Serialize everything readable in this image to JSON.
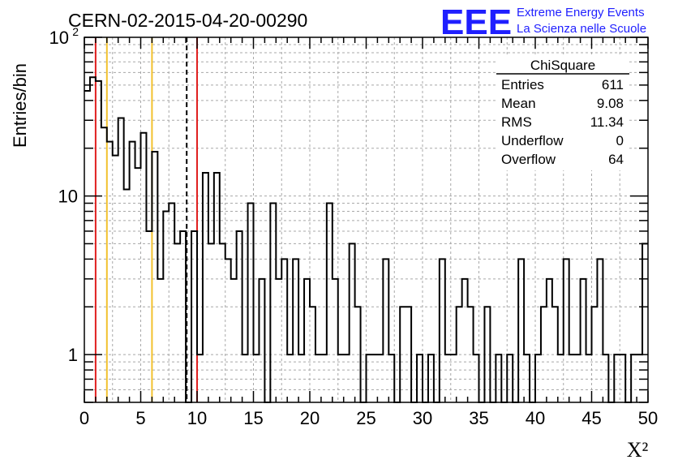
{
  "chart_data": {
    "type": "histogram",
    "title": "CERN-02-2015-04-20-00290",
    "xlabel": "X²",
    "ylabel": "Entries/bin",
    "xlim": [
      0,
      50
    ],
    "ylim": [
      0.5,
      100
    ],
    "yscale": "log",
    "grid": true,
    "bin_width": 0.5,
    "x_ticks": [
      "0",
      "5",
      "10",
      "15",
      "20",
      "25",
      "30",
      "35",
      "40",
      "45",
      "50"
    ],
    "y_ticks": [
      {
        "value": 1,
        "label": "1"
      },
      {
        "value": 10,
        "label": "10"
      },
      {
        "value": 100,
        "label": "10",
        "exponent": "2"
      }
    ],
    "counts": [
      46,
      56,
      53,
      27,
      22,
      18,
      31,
      11,
      22,
      15,
      25,
      6,
      19,
      3,
      8,
      9,
      5,
      6,
      0,
      6,
      1,
      14,
      5,
      14,
      5,
      4,
      3,
      6,
      1,
      9,
      1,
      3,
      0,
      9,
      3,
      4,
      1,
      4,
      1,
      3,
      2,
      1,
      1,
      9,
      3,
      1,
      1,
      5,
      2,
      0,
      1,
      1,
      1,
      4,
      1,
      0,
      2,
      2,
      0,
      1,
      0,
      1,
      0,
      4,
      1,
      1,
      2,
      3,
      2,
      1,
      0,
      2,
      0,
      1,
      0,
      1,
      0,
      4,
      1,
      0,
      1,
      2,
      3,
      2,
      1,
      4,
      1,
      1,
      3,
      1,
      2,
      4,
      1,
      0,
      1,
      1,
      0,
      1,
      1,
      5
    ],
    "vertical_lines": [
      {
        "x": 1,
        "color": "#e02020",
        "style": "solid"
      },
      {
        "x": 2,
        "color": "#f2c12e",
        "style": "solid"
      },
      {
        "x": 6,
        "color": "#f2c12e",
        "style": "solid"
      },
      {
        "x": 9.08,
        "color": "#000000",
        "style": "dashed"
      },
      {
        "x": 10,
        "color": "#e02020",
        "style": "solid"
      }
    ],
    "stats_box": {
      "name": "ChiSquare",
      "rows": [
        {
          "label": "Entries",
          "value": "611"
        },
        {
          "label": "Mean",
          "value": "9.08"
        },
        {
          "label": "RMS",
          "value": "11.34"
        },
        {
          "label": "Underflow",
          "value": "0"
        },
        {
          "label": "Overflow",
          "value": "64"
        }
      ]
    }
  },
  "logo": {
    "text": "EEE",
    "line1": "Extreme Energy Events",
    "line2": "La Scienza nelle Scuole",
    "color": "#1f1fff"
  }
}
